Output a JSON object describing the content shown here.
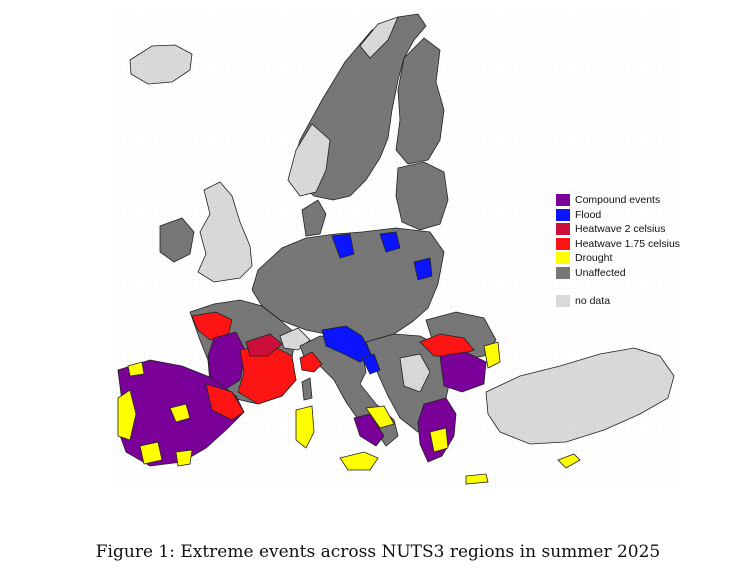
{
  "caption": "Figure 1: Extreme events across NUTS3 regions in summer 2025",
  "legend": {
    "items": [
      {
        "label": "Compound events",
        "color": "#7a0099"
      },
      {
        "label": "Flood",
        "color": "#0a14ff"
      },
      {
        "label": "Heatwave 2 celsius",
        "color": "#cc0f3a"
      },
      {
        "label": "Heatwave 1.75 celsius",
        "color": "#ff1414"
      },
      {
        "label": "Drought",
        "color": "#ffff00"
      },
      {
        "label": "Unaffected",
        "color": "#777777"
      }
    ],
    "nodata": {
      "label": "no data",
      "color": "#d9d9d9"
    }
  },
  "colors": {
    "compound": "#7a0099",
    "flood": "#0a14ff",
    "heat2": "#cc0f3a",
    "heat175": "#ff1414",
    "drought": "#ffff00",
    "unaffected": "#777777",
    "nodata": "#d9d9d9",
    "border": "#222222"
  }
}
